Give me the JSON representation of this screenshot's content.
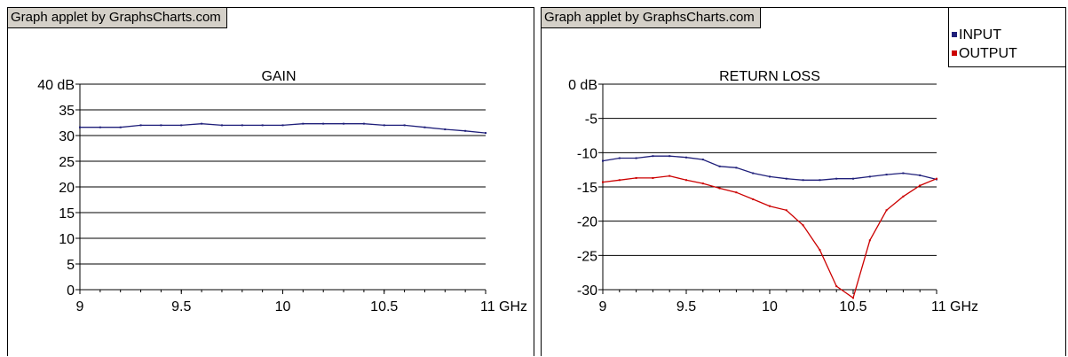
{
  "credit_label": "Graph applet by GraphsCharts.com",
  "chart_data": [
    {
      "type": "line",
      "title": "GAIN",
      "xlabel": "",
      "ylabel": "",
      "x_unit": "GHz",
      "y_unit": "dB",
      "xlim": [
        9,
        11
      ],
      "ylim": [
        0,
        40
      ],
      "x_ticks": [
        "9",
        "9.5",
        "10",
        "10.5",
        "11 GHz"
      ],
      "y_ticks": [
        "40 dB",
        "35",
        "30",
        "25",
        "20",
        "15",
        "10",
        "5",
        "0"
      ],
      "grid": true,
      "legend": null,
      "series": [
        {
          "name": "",
          "color": "#1f1f7a",
          "x": [
            9.0,
            9.1,
            9.2,
            9.3,
            9.4,
            9.5,
            9.6,
            9.7,
            9.8,
            9.9,
            10.0,
            10.1,
            10.2,
            10.3,
            10.4,
            10.5,
            10.6,
            10.7,
            10.8,
            10.9,
            11.0
          ],
          "y": [
            31.6,
            31.6,
            31.6,
            32.0,
            32.0,
            32.0,
            32.3,
            32.0,
            32.0,
            32.0,
            32.0,
            32.3,
            32.3,
            32.3,
            32.3,
            32.0,
            32.0,
            31.6,
            31.2,
            30.9,
            30.5
          ]
        }
      ]
    },
    {
      "type": "line",
      "title": "RETURN LOSS",
      "xlabel": "",
      "ylabel": "",
      "x_unit": "GHz",
      "y_unit": "dB",
      "xlim": [
        9,
        11
      ],
      "ylim": [
        -30,
        0
      ],
      "x_ticks": [
        "9",
        "9.5",
        "10",
        "10.5",
        "11 GHz"
      ],
      "y_ticks": [
        "0 dB",
        "-5",
        "-10",
        "-15",
        "-20",
        "-25",
        "-30"
      ],
      "grid": true,
      "legend": "top-right",
      "series": [
        {
          "name": "INPUT",
          "color": "#1f1f7a",
          "x": [
            9.0,
            9.1,
            9.2,
            9.3,
            9.4,
            9.5,
            9.6,
            9.7,
            9.8,
            9.9,
            10.0,
            10.1,
            10.2,
            10.3,
            10.4,
            10.5,
            10.6,
            10.7,
            10.8,
            10.9,
            11.0
          ],
          "y": [
            -11.2,
            -10.8,
            -10.8,
            -10.5,
            -10.5,
            -10.7,
            -11.0,
            -12.0,
            -12.2,
            -13.0,
            -13.5,
            -13.8,
            -14.0,
            -14.0,
            -13.8,
            -13.8,
            -13.5,
            -13.2,
            -13.0,
            -13.3,
            -13.9
          ]
        },
        {
          "name": "OUTPUT",
          "color": "#cc0000",
          "x": [
            9.0,
            9.1,
            9.2,
            9.3,
            9.4,
            9.5,
            9.6,
            9.7,
            9.8,
            9.9,
            10.0,
            10.1,
            10.2,
            10.3,
            10.4,
            10.5,
            10.6,
            10.7,
            10.8,
            10.9,
            11.0
          ],
          "y": [
            -14.3,
            -14.0,
            -13.7,
            -13.7,
            -13.4,
            -14.0,
            -14.5,
            -15.2,
            -15.8,
            -16.8,
            -17.8,
            -18.4,
            -20.6,
            -24.2,
            -29.5,
            -31.2,
            -22.8,
            -18.4,
            -16.4,
            -14.8,
            -13.8
          ]
        }
      ]
    }
  ]
}
